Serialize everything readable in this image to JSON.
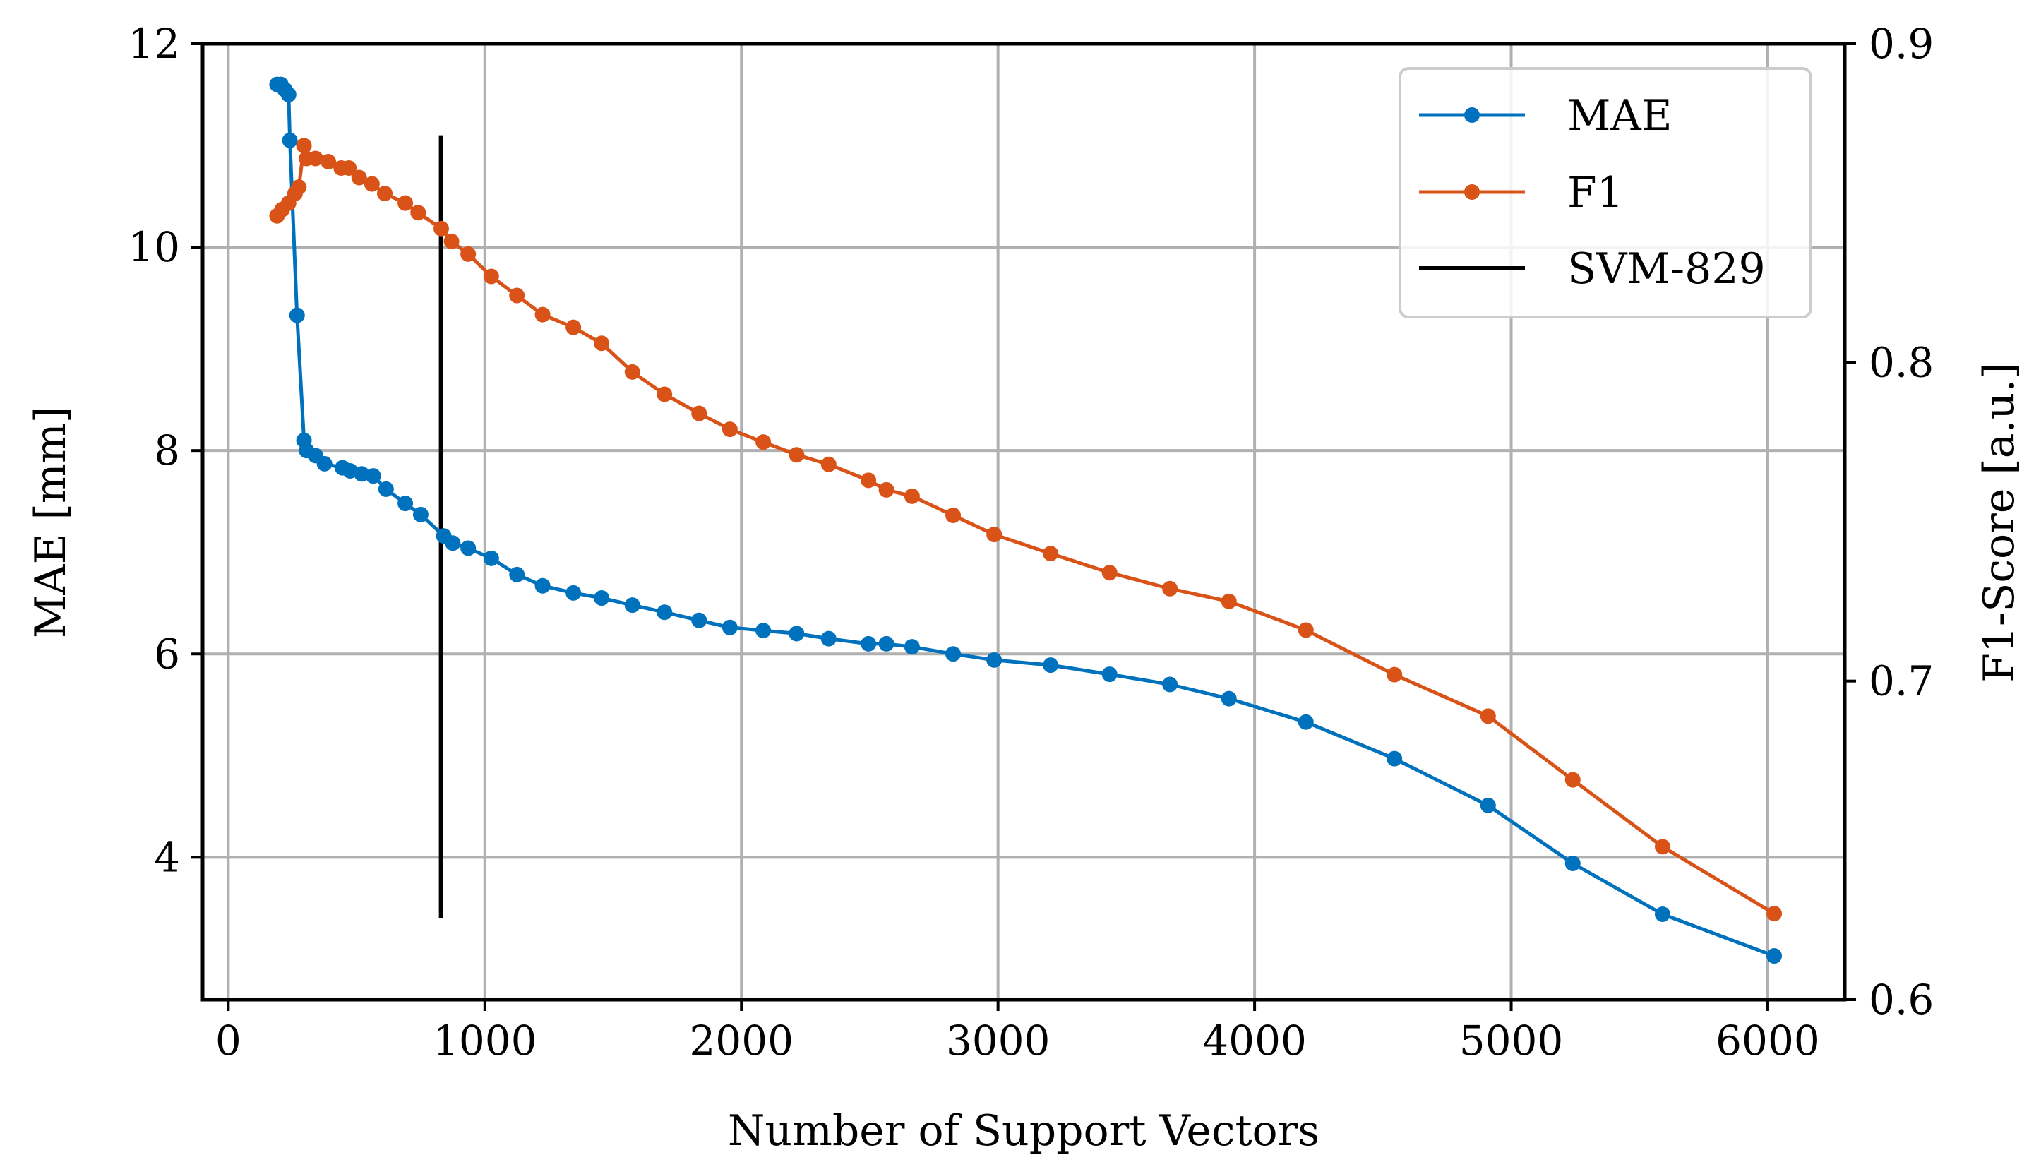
{
  "chart_data": {
    "type": "line",
    "xlabel": "Number of Support Vectors",
    "ylabel": "MAE [mm]",
    "y2label": "F1-Score [a.u.]",
    "xlim": [
      -100,
      6300
    ],
    "ylim": [
      2.6,
      12
    ],
    "y2lim": [
      0.6,
      0.9
    ],
    "xticks": [
      0,
      1000,
      2000,
      3000,
      4000,
      5000,
      6000
    ],
    "yticks": [
      4,
      6,
      8,
      10,
      12
    ],
    "y2ticks": [
      0.6,
      0.7,
      0.8,
      0.9
    ],
    "xtick_labels": [
      "0",
      "1000",
      "2000",
      "3000",
      "4000",
      "5000",
      "6000"
    ],
    "ytick_labels": [
      "4",
      "6",
      "8",
      "10",
      "12"
    ],
    "y2tick_labels": [
      "0.6",
      "0.7",
      "0.8",
      "0.9"
    ],
    "grid": true,
    "legend_position": "top-right",
    "series": [
      {
        "name": "MAE",
        "axis": "left",
        "color": "#0072bd",
        "x": [
          190,
          205,
          220,
          235,
          240,
          268,
          295,
          305,
          340,
          375,
          445,
          475,
          520,
          565,
          615,
          690,
          750,
          840,
          875,
          935,
          1025,
          1125,
          1225,
          1345,
          1455,
          1575,
          1700,
          1835,
          1955,
          2085,
          2215,
          2340,
          2495,
          2565,
          2665,
          2825,
          2985,
          3205,
          3435,
          3670,
          3900,
          4200,
          4545,
          4910,
          5240,
          5590,
          6025
        ],
        "values": [
          11.6,
          11.6,
          11.55,
          11.5,
          11.05,
          9.33,
          8.1,
          8.0,
          7.95,
          7.87,
          7.83,
          7.8,
          7.77,
          7.75,
          7.62,
          7.48,
          7.37,
          7.16,
          7.09,
          7.04,
          6.94,
          6.78,
          6.67,
          6.6,
          6.55,
          6.48,
          6.41,
          6.33,
          6.26,
          6.23,
          6.2,
          6.15,
          6.1,
          6.1,
          6.07,
          6.0,
          5.94,
          5.89,
          5.8,
          5.7,
          5.56,
          5.33,
          4.97,
          4.51,
          3.94,
          3.44,
          3.03
        ]
      },
      {
        "name": "F1",
        "axis": "right",
        "color": "#d95319",
        "x": [
          190,
          210,
          235,
          260,
          275,
          295,
          305,
          340,
          390,
          440,
          470,
          510,
          560,
          610,
          690,
          740,
          830,
          870,
          935,
          1025,
          1125,
          1225,
          1345,
          1455,
          1575,
          1700,
          1835,
          1955,
          2085,
          2215,
          2340,
          2495,
          2565,
          2665,
          2825,
          2985,
          3205,
          3435,
          3670,
          3900,
          4200,
          4545,
          4910,
          5240,
          5590,
          6025
        ],
        "values": [
          0.846,
          0.848,
          0.85,
          0.853,
          0.855,
          0.868,
          0.864,
          0.864,
          0.863,
          0.861,
          0.861,
          0.858,
          0.856,
          0.853,
          0.85,
          0.847,
          0.842,
          0.838,
          0.834,
          0.827,
          0.821,
          0.815,
          0.811,
          0.806,
          0.797,
          0.79,
          0.784,
          0.779,
          0.775,
          0.771,
          0.768,
          0.763,
          0.76,
          0.758,
          0.752,
          0.746,
          0.74,
          0.734,
          0.729,
          0.725,
          0.716,
          0.702,
          0.689,
          0.669,
          0.648,
          0.627
        ]
      }
    ],
    "vline": {
      "name": "SVM-829",
      "color": "#000000",
      "x": 829,
      "y_from": 3.4,
      "y_to": 11.1
    }
  }
}
